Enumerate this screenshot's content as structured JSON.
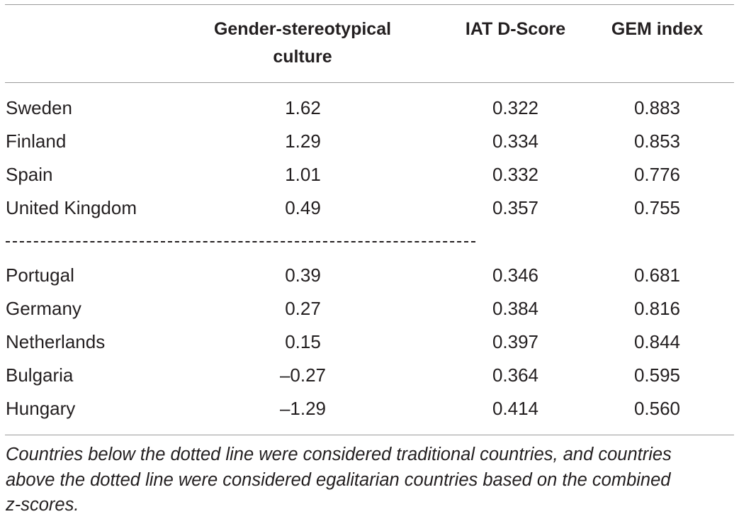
{
  "table": {
    "headers": {
      "col1_line1": "Gender-stereotypical",
      "col1_line2": "culture",
      "col2": "IAT D-Score",
      "col3": "GEM index"
    },
    "egalitarian_rows": [
      {
        "country": "Sweden",
        "culture": "1.62",
        "iat": "0.322",
        "gem": "0.883"
      },
      {
        "country": "Finland",
        "culture": "1.29",
        "iat": "0.334",
        "gem": "0.853"
      },
      {
        "country": "Spain",
        "culture": "1.01",
        "iat": "0.332",
        "gem": "0.776"
      },
      {
        "country": "United Kingdom",
        "culture": "0.49",
        "iat": "0.357",
        "gem": "0.755"
      }
    ],
    "traditional_rows": [
      {
        "country": "Portugal",
        "culture": "0.39",
        "iat": "0.346",
        "gem": "0.681"
      },
      {
        "country": "Germany",
        "culture": "0.27",
        "iat": "0.384",
        "gem": "0.816"
      },
      {
        "country": "Netherlands",
        "culture": "0.15",
        "iat": "0.397",
        "gem": "0.844"
      },
      {
        "country": "Bulgaria",
        "culture": "–0.27",
        "iat": "0.364",
        "gem": "0.595"
      },
      {
        "country": "Hungary",
        "culture": "–1.29",
        "iat": "0.414",
        "gem": "0.560"
      }
    ]
  },
  "footnote": {
    "line1": "Countries below the dotted line were considered traditional countries, and countries",
    "line2": "above the dotted line were considered egalitarian countries based on the combined",
    "line3": "z-scores."
  }
}
